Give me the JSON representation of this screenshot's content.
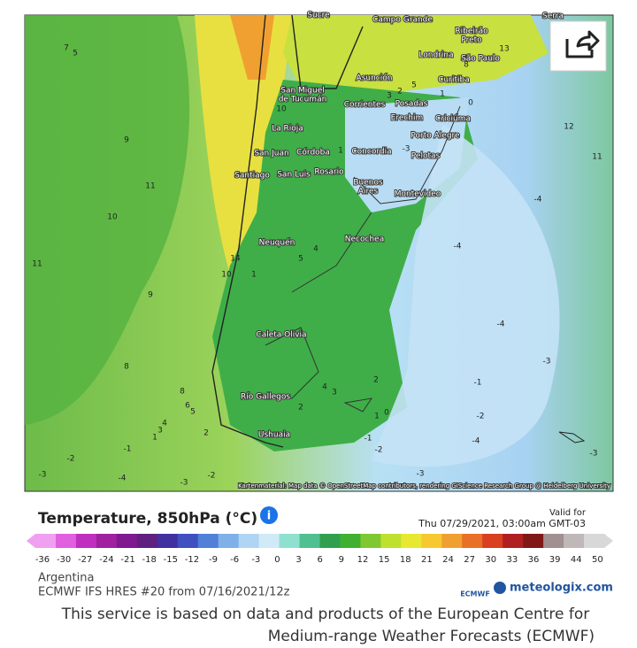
{
  "map": {
    "attribution": "Kartenmaterial: Map data © OpenStreetMap contributors, rendering GIScience Research Group @ Heidelberg University",
    "cities": [
      "Sucre",
      "Campo Grande",
      "Ribeirão",
      "Preto",
      "Serra",
      "Londrina",
      "São Paulo",
      "Asunción",
      "Curitiba",
      "San Miguel",
      "de Tucumán",
      "Corrientes",
      "Posadas",
      "Erechim",
      "Criciúma",
      "La Rioja",
      "Porto Alegre",
      "San Juan",
      "Córdoba",
      "Concordia",
      "Pelotas",
      "Santiago",
      "San Luis",
      "Rosario",
      "Buenos",
      "Aires",
      "Montevideo",
      "Neuquén",
      "Necochea",
      "Caleta Olivia",
      "Río Gallegos",
      "Ushuaia"
    ],
    "contour_labels": [
      7,
      5,
      9,
      11,
      10,
      11,
      9,
      8,
      8,
      6,
      5,
      4,
      3,
      1,
      2,
      -1,
      -2,
      -3,
      -4,
      -3,
      -2,
      12,
      11,
      -4,
      -4,
      -4,
      -3,
      -1,
      -2,
      -4,
      -3,
      -3,
      0,
      1,
      -1,
      -2,
      2,
      4,
      3,
      2,
      5,
      4,
      14,
      10,
      1,
      10,
      3,
      2,
      1,
      0,
      -3,
      5,
      13,
      8,
      1
    ]
  },
  "legend": {
    "title": "Temperature, 850hPa (°C)",
    "valid_label": "Valid for",
    "valid_time": "Thu 07/29/2021, 03:00am GMT-03",
    "ticks": [
      -36,
      -30,
      -27,
      -24,
      -21,
      -18,
      -15,
      -12,
      -9,
      -6,
      -3,
      0,
      3,
      6,
      9,
      12,
      15,
      18,
      21,
      24,
      27,
      30,
      33,
      36,
      39,
      44,
      50
    ],
    "colors": [
      "#f0a0f0",
      "#e060e0",
      "#c030c0",
      "#a020a0",
      "#801890",
      "#602080",
      "#4030a0",
      "#4050c0",
      "#5080d8",
      "#80b0e8",
      "#b0d4f4",
      "#d0eaf8",
      "#90e0d0",
      "#50c090",
      "#30a050",
      "#40b030",
      "#80c830",
      "#c0e030",
      "#e8e830",
      "#f8c830",
      "#f0a030",
      "#e87028",
      "#d84020",
      "#b02020",
      "#801818",
      "#a09090",
      "#c0b8b8",
      "#d8d8d8"
    ]
  },
  "source": {
    "region": "Argentina",
    "model": "ECMWF IFS HRES #20 from 07/16/2021/12z",
    "ecmwf": "ECMWF",
    "brand": "meteologix.com"
  },
  "footer": {
    "line1": "This service is based on data and products of the European Centre for",
    "line2": "Medium-range Weather Forecasts (ECMWF)"
  }
}
